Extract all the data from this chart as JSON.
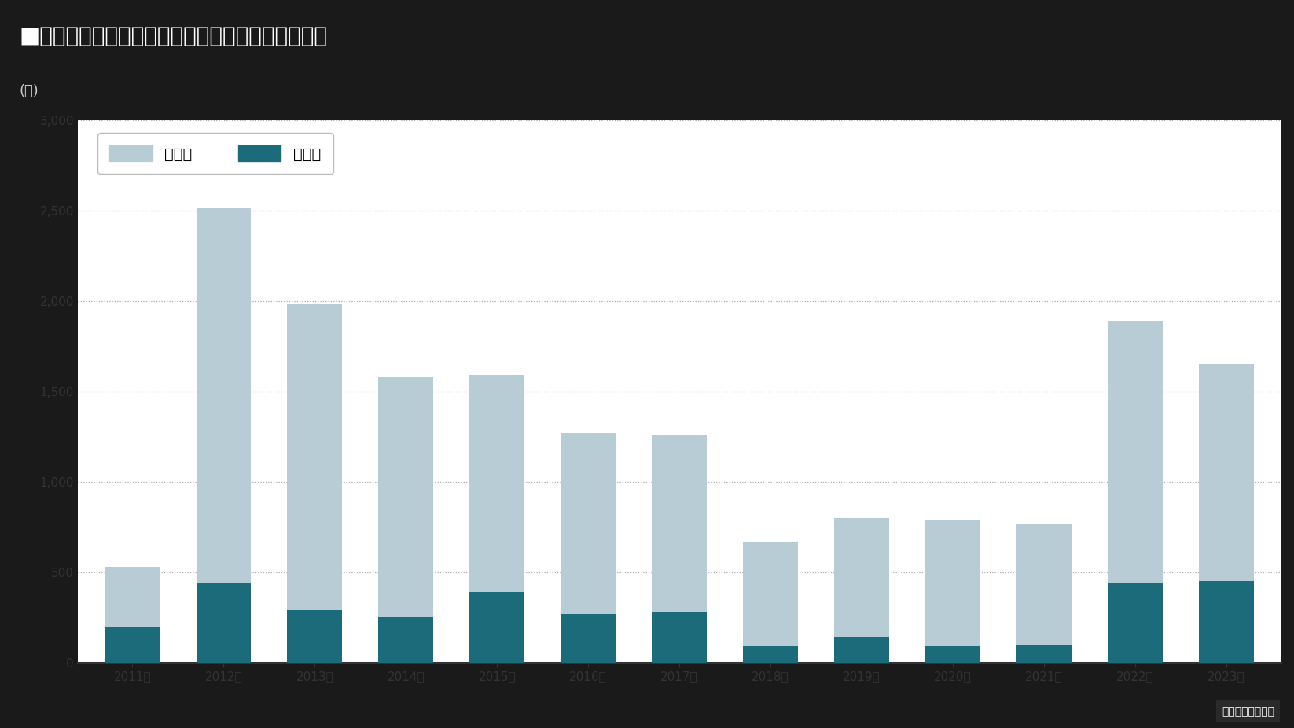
{
  "title": "■京都市と下京区の新築マンション供給戸数の推移",
  "unit_label": "(戸)",
  "source_label": "不動産経済研究所",
  "years": [
    "2011年",
    "2012年",
    "2013年",
    "2014年",
    "2015年",
    "2016年",
    "2017年",
    "2018年",
    "2019年",
    "2020年",
    "2021年",
    "2022年",
    "2023年"
  ],
  "kyoto_total": [
    530,
    2510,
    1980,
    1580,
    1590,
    1270,
    1260,
    670,
    800,
    790,
    770,
    1890,
    1650
  ],
  "shimogyo_values": [
    200,
    440,
    290,
    250,
    390,
    270,
    280,
    90,
    140,
    90,
    100,
    440,
    450
  ],
  "kyoto_color": "#b8ccd6",
  "shimogyo_color": "#1b6b7b",
  "ylim": [
    0,
    3000
  ],
  "yticks": [
    0,
    500,
    1000,
    1500,
    2000,
    2500,
    3000
  ],
  "ytick_labels": [
    "0",
    "500",
    "1,000",
    "1,500",
    "2,000",
    "2,500",
    "3,000"
  ],
  "title_bg_color": "#1a1a1a",
  "title_font_color": "#ffffff",
  "subtitle_bg_color": "#2d2d2d",
  "subtitle_font_color": "#cccccc",
  "bar_width": 0.6,
  "grid_color": "#aaaaaa",
  "background_color": "#ffffff",
  "fig_bg_color": "#1a1a1a",
  "axis_color": "#333333",
  "tick_color": "#333333"
}
